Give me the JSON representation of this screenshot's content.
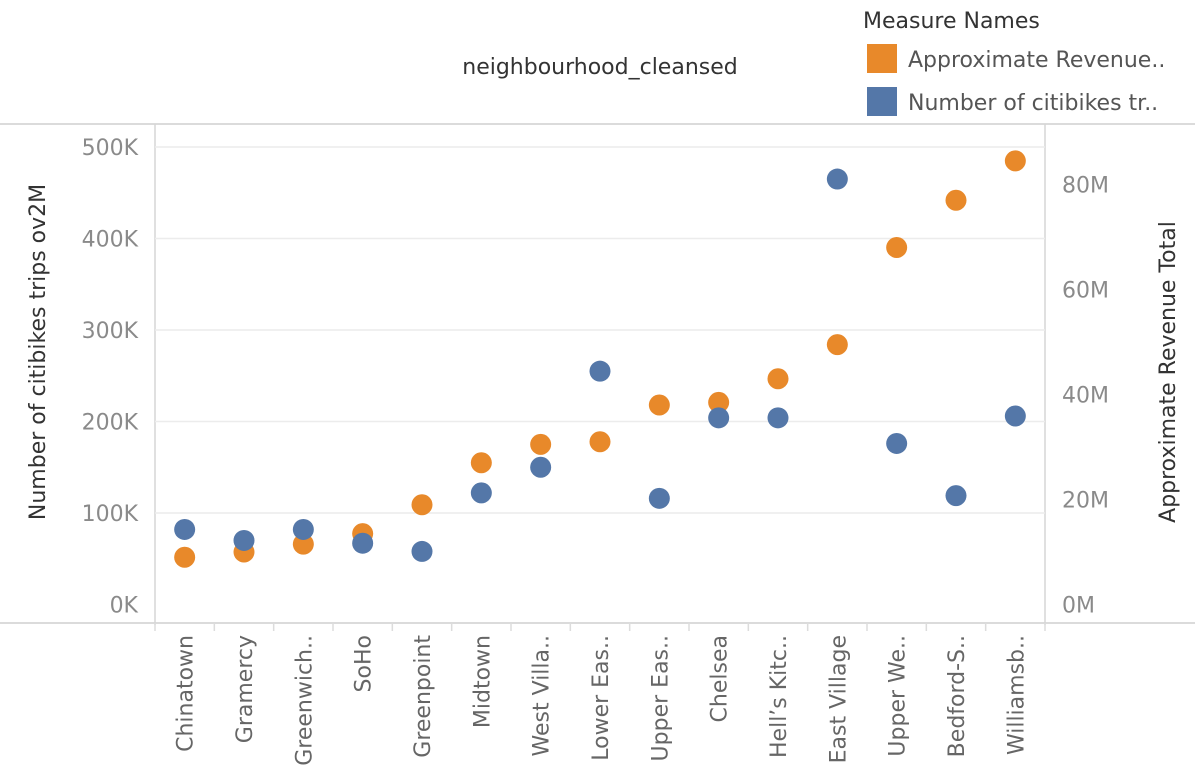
{
  "chart_data": {
    "type": "scatter",
    "header": "neighbourhood_cleansed",
    "categories": [
      "Chinatown",
      "Gramercy",
      "Greenwich..",
      "SoHo",
      "Greenpoint",
      "Midtown",
      "West Villa..",
      "Lower Eas..",
      "Upper Eas..",
      "Chelsea",
      "Hell’s Kitc..",
      "East Village",
      "Upper We..",
      "Bedford-S..",
      "Williamsb.."
    ],
    "left_axis": {
      "title": "Number of citibikes trips ov2M",
      "ylim": [
        0,
        520000
      ],
      "ticks": [
        0,
        100000,
        200000,
        300000,
        400000,
        500000
      ],
      "tick_labels": [
        "0K",
        "100K",
        "200K",
        "300K",
        "400K",
        "500K"
      ]
    },
    "right_axis": {
      "title": "Approximate Revenue Total",
      "ylim": [
        0,
        95000000
      ],
      "ticks": [
        0,
        20000000,
        40000000,
        60000000,
        80000000
      ],
      "tick_labels": [
        "0M",
        "20M",
        "40M",
        "60M",
        "80M"
      ]
    },
    "legend": {
      "title": "Measure Names",
      "position": "top-right"
    },
    "series": [
      {
        "name": "Approximate Revenue..",
        "axis": "right",
        "color": "#E8892A",
        "values": [
          9000000,
          10000000,
          11500000,
          13500000,
          19000000,
          27000000,
          30500000,
          31000000,
          38000000,
          38500000,
          43000000,
          49500000,
          68000000,
          77000000,
          84500000
        ]
      },
      {
        "name": "Number of citibikes tr..",
        "axis": "left",
        "color": "#5477A8",
        "values": [
          82000,
          70000,
          82000,
          67000,
          58000,
          122000,
          150000,
          255000,
          116000,
          204000,
          204000,
          465000,
          176000,
          119000,
          206000
        ]
      }
    ]
  }
}
